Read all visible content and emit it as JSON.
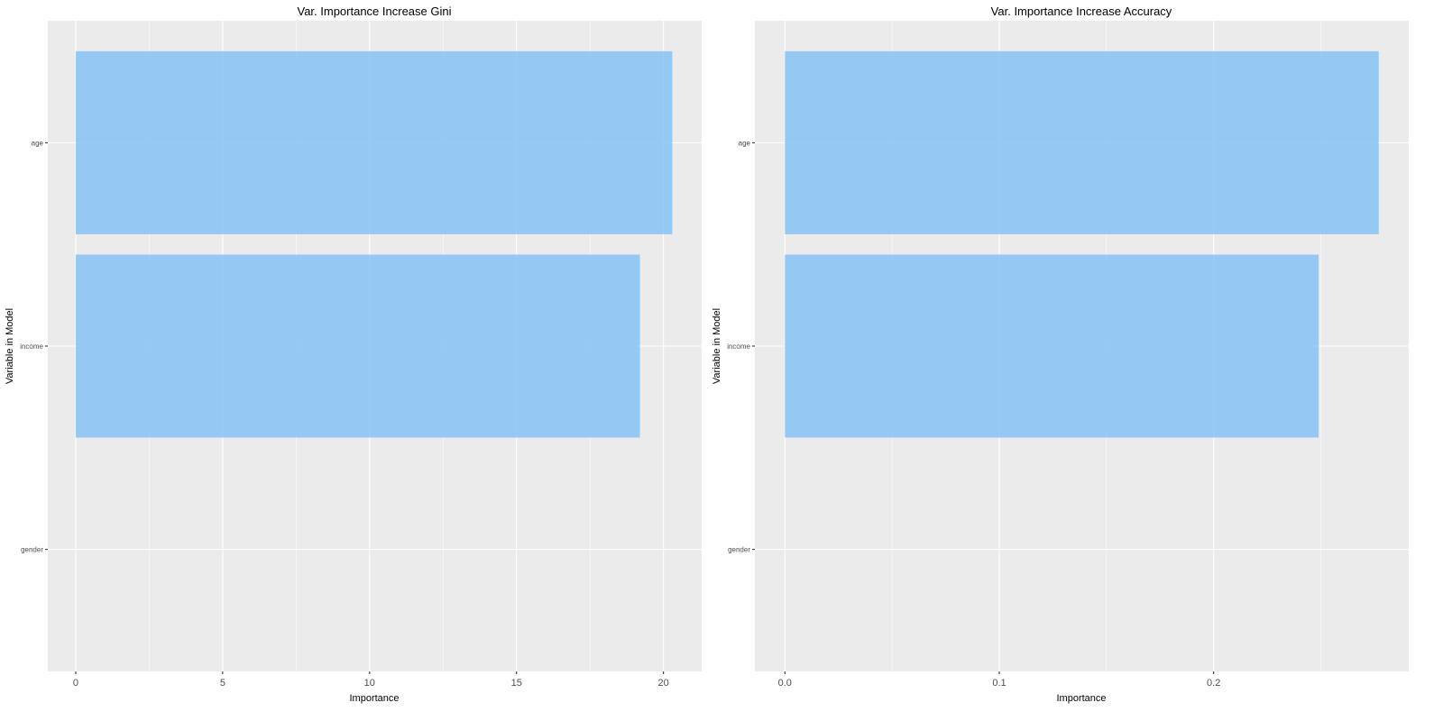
{
  "colors": {
    "bar": "#80bff5",
    "bar_opacity": "0.8"
  },
  "chart_data": [
    {
      "type": "bar",
      "orientation": "horizontal",
      "title": "Var. Importance Increase Gini",
      "xlabel": "Importance",
      "ylabel": "Variable in Model",
      "categories": [
        "age",
        "income",
        "gender"
      ],
      "values": [
        20.3,
        19.2,
        0
      ],
      "xlim": [
        -0.95,
        21.3
      ],
      "xticks": [
        0,
        5,
        10,
        15,
        20
      ],
      "xtick_labels": [
        "0",
        "5",
        "10",
        "15",
        "20"
      ],
      "grid": true
    },
    {
      "type": "bar",
      "orientation": "horizontal",
      "title": "Var. Importance Increase Accuracy",
      "xlabel": "Importance",
      "ylabel": "Variable in Model",
      "categories": [
        "age",
        "income",
        "gender"
      ],
      "values": [
        0.277,
        0.249,
        0
      ],
      "xlim": [
        -0.014,
        0.291
      ],
      "xticks": [
        0.0,
        0.1,
        0.2
      ],
      "xtick_labels": [
        "0.0",
        "0.1",
        "0.2"
      ],
      "grid": true
    }
  ]
}
